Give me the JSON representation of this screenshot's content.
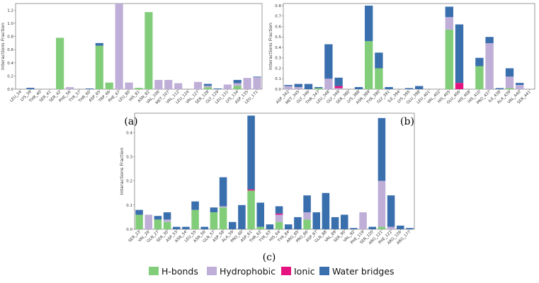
{
  "colors": {
    "hbond": "#82cd79",
    "hydrophobic": "#bfaed7",
    "ionic": "#e4137f",
    "water": "#3a6fae"
  },
  "legend": [
    "H-bonds",
    "Hydrophobic",
    "Ionic",
    "Water bridges"
  ],
  "chart_data": [
    {
      "type": "bar",
      "panel_label": "(a)",
      "ylabel": "Interactions Fraction",
      "ylim": [
        0,
        1.3
      ],
      "yticks": [
        0.0,
        0.2,
        0.4,
        0.6,
        0.8,
        1.0,
        1.2
      ],
      "categories": [
        "LEU_34",
        "LYS_39",
        "THR_40",
        "SER_41",
        "SER_42",
        "PHE_56",
        "TYR_57",
        "THR_60",
        "ASP_65",
        "TRP_66",
        "PHE_67",
        "LEU_80",
        "HIS_81",
        "ASN_82",
        "VAL_106",
        "MET_107",
        "VAL_112",
        "LEU_124",
        "VAL_127",
        "SER_128",
        "GLY_129",
        "LEU_131",
        "LYS_134",
        "ASP_135",
        "LEU_171"
      ],
      "series": [
        {
          "name": "H-bonds",
          "values": [
            0,
            0,
            0,
            0,
            0.78,
            0,
            0,
            0,
            0.66,
            0.1,
            0,
            0,
            0.02,
            1.17,
            0,
            0,
            0,
            0,
            0,
            0.03,
            0,
            0,
            0.05,
            0,
            0
          ]
        },
        {
          "name": "Hydrophobic",
          "values": [
            0,
            0,
            0,
            0,
            0,
            0.03,
            0,
            0,
            0,
            0,
            1.3,
            0.1,
            0,
            0,
            0.14,
            0.14,
            0.09,
            0,
            0.11,
            0.02,
            0,
            0.07,
            0.04,
            0.17,
            0.18
          ]
        },
        {
          "name": "Ionic",
          "values": [
            0,
            0,
            0,
            0,
            0,
            0,
            0,
            0,
            0,
            0,
            0,
            0,
            0,
            0,
            0,
            0,
            0,
            0,
            0,
            0,
            0,
            0,
            0,
            0,
            0
          ]
        },
        {
          "name": "Water bridges",
          "values": [
            0,
            0.02,
            0,
            0,
            0,
            0,
            0,
            0.01,
            0.04,
            0,
            0,
            0,
            0,
            0,
            0,
            0,
            0,
            0,
            0,
            0.03,
            0.01,
            0,
            0.05,
            0,
            0.01
          ]
        }
      ]
    },
    {
      "type": "bar",
      "panel_label": "(b)",
      "ylabel": "Interactions Fraction",
      "ylim": [
        0,
        0.82
      ],
      "yticks": [
        0.0,
        0.1,
        0.2,
        0.3,
        0.4,
        0.5,
        0.6,
        0.7,
        0.8
      ],
      "categories": [
        "ASP_342",
        "MET_345",
        "GLY_346",
        "THR_347",
        "LEU_348",
        "GLY_349",
        "SER_380",
        "LYS_388",
        "ASN_389",
        "TYR_390",
        "GLY_391",
        "ILE_394",
        "LYS_395",
        "GLU_398",
        "LEU_401",
        "VAL_402",
        "HIS_405",
        "GLU_406",
        "HIS_408",
        "HIS_410",
        "PRO_437",
        "ILE_438",
        "ALA_439",
        "VAL_440",
        "SER_441"
      ],
      "series": [
        {
          "name": "H-bonds",
          "values": [
            0,
            0,
            0,
            0.01,
            0,
            0,
            0,
            0,
            0.46,
            0.2,
            0,
            0,
            0,
            0,
            0,
            0,
            0.57,
            0,
            0,
            0.22,
            0,
            0,
            0.01,
            0,
            0
          ]
        },
        {
          "name": "Hydrophobic",
          "values": [
            0.03,
            0.02,
            0,
            0,
            0.1,
            0.01,
            0,
            0,
            0,
            0,
            0,
            0,
            0,
            0,
            0,
            0,
            0.12,
            0,
            0,
            0,
            0.44,
            0,
            0.11,
            0.04,
            0
          ]
        },
        {
          "name": "Ionic",
          "values": [
            0,
            0,
            0,
            0,
            0,
            0.02,
            0,
            0,
            0,
            0,
            0,
            0,
            0,
            0,
            0,
            0,
            0,
            0.06,
            0,
            0,
            0,
            0,
            0,
            0,
            0
          ]
        },
        {
          "name": "Water bridges",
          "values": [
            0.01,
            0.03,
            0.05,
            0.01,
            0.33,
            0.08,
            0,
            0.02,
            0.34,
            0.15,
            0.02,
            0,
            0.01,
            0.03,
            0,
            0,
            0.1,
            0.56,
            0,
            0.08,
            0.06,
            0.01,
            0.08,
            0.02,
            0
          ]
        }
      ]
    },
    {
      "type": "bar",
      "panel_label": "(c)",
      "ylabel": "Interactions Fraction",
      "ylim": [
        0,
        0.48
      ],
      "yticks": [
        0.0,
        0.1,
        0.2,
        0.3,
        0.4
      ],
      "categories": [
        "SER_23",
        "VAL_26",
        "GLN_27",
        "SER_30",
        "ASP_53",
        "ASN_54",
        "LEU_55",
        "ASN_56",
        "GLN_57",
        "ASP_58",
        "ALA_59",
        "PRO_60",
        "ASP_61",
        "THR_62",
        "TYR_63",
        "HIS_64",
        "TYR_84",
        "ARG_85",
        "PRO_86",
        "ASP_87",
        "GLN_88",
        "VAL_89",
        "SER_90",
        "VAL_92",
        "PHE_119",
        "SER_120",
        "ARG_121",
        "PHE_122",
        "ARG_126",
        "ARG_177"
      ],
      "series": [
        {
          "name": "H-bonds",
          "values": [
            0.06,
            0,
            0.04,
            0.03,
            0,
            0,
            0.08,
            0,
            0.07,
            0.09,
            0,
            0,
            0.16,
            0.01,
            0,
            0.03,
            0,
            0,
            0.04,
            0,
            0,
            0,
            0,
            0,
            0,
            0,
            0.01,
            0,
            0,
            0
          ]
        },
        {
          "name": "Hydrophobic",
          "values": [
            0,
            0.06,
            0,
            0.01,
            0,
            0,
            0,
            0,
            0,
            0.005,
            0,
            0,
            0,
            0,
            0,
            0.03,
            0,
            0,
            0.03,
            0,
            0,
            0,
            0,
            0,
            0.07,
            0,
            0.19,
            0.01,
            0,
            0
          ]
        },
        {
          "name": "Ionic",
          "values": [
            0,
            0,
            0,
            0,
            0,
            0,
            0,
            0,
            0,
            0,
            0,
            0,
            0.005,
            0,
            0,
            0.005,
            0,
            0,
            0,
            0,
            0,
            0,
            0,
            0,
            0,
            0,
            0,
            0,
            0,
            0
          ]
        },
        {
          "name": "Water bridges",
          "values": [
            0.02,
            0,
            0.015,
            0.03,
            0.01,
            0.01,
            0.035,
            0.01,
            0.02,
            0.12,
            0.03,
            0.1,
            0.305,
            0.1,
            0.02,
            0.03,
            0.02,
            0.05,
            0.07,
            0.07,
            0.15,
            0.05,
            0.06,
            0.005,
            0,
            0.01,
            0.26,
            0.13,
            0.015,
            0.005
          ]
        }
      ]
    }
  ]
}
